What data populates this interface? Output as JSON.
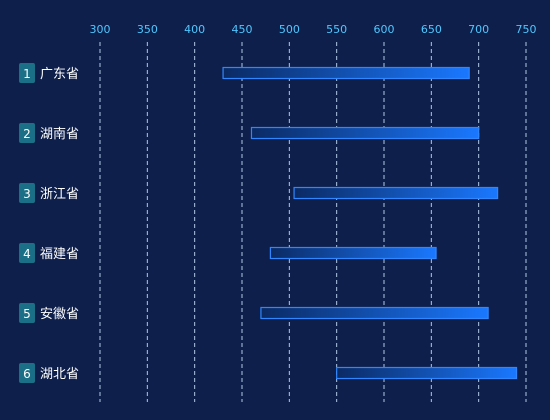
{
  "chart_data": {
    "type": "bar",
    "orientation": "horizontal",
    "title": "",
    "xlabel": "",
    "ylabel": "",
    "xlim": [
      300,
      750
    ],
    "x_ticks": [
      300,
      350,
      400,
      450,
      500,
      550,
      600,
      650,
      700,
      750
    ],
    "grid": true,
    "categories": [
      "广东省",
      "湖南省",
      "浙江省",
      "福建省",
      "安徽省",
      "湖北省"
    ],
    "ranks": [
      "1",
      "2",
      "3",
      "4",
      "5",
      "6"
    ],
    "ranges": [
      [
        430,
        690
      ],
      [
        460,
        700
      ],
      [
        505,
        720
      ],
      [
        480,
        655
      ],
      [
        470,
        710
      ],
      [
        550,
        740
      ]
    ],
    "colors": {
      "background": "#0e1f4b",
      "bar_start": "#0b2a63",
      "bar_end": "#1a78ff",
      "bar_border": "#2f86ff",
      "tick": "#4fc7ff",
      "rank_badge": "#1b6f86"
    }
  }
}
